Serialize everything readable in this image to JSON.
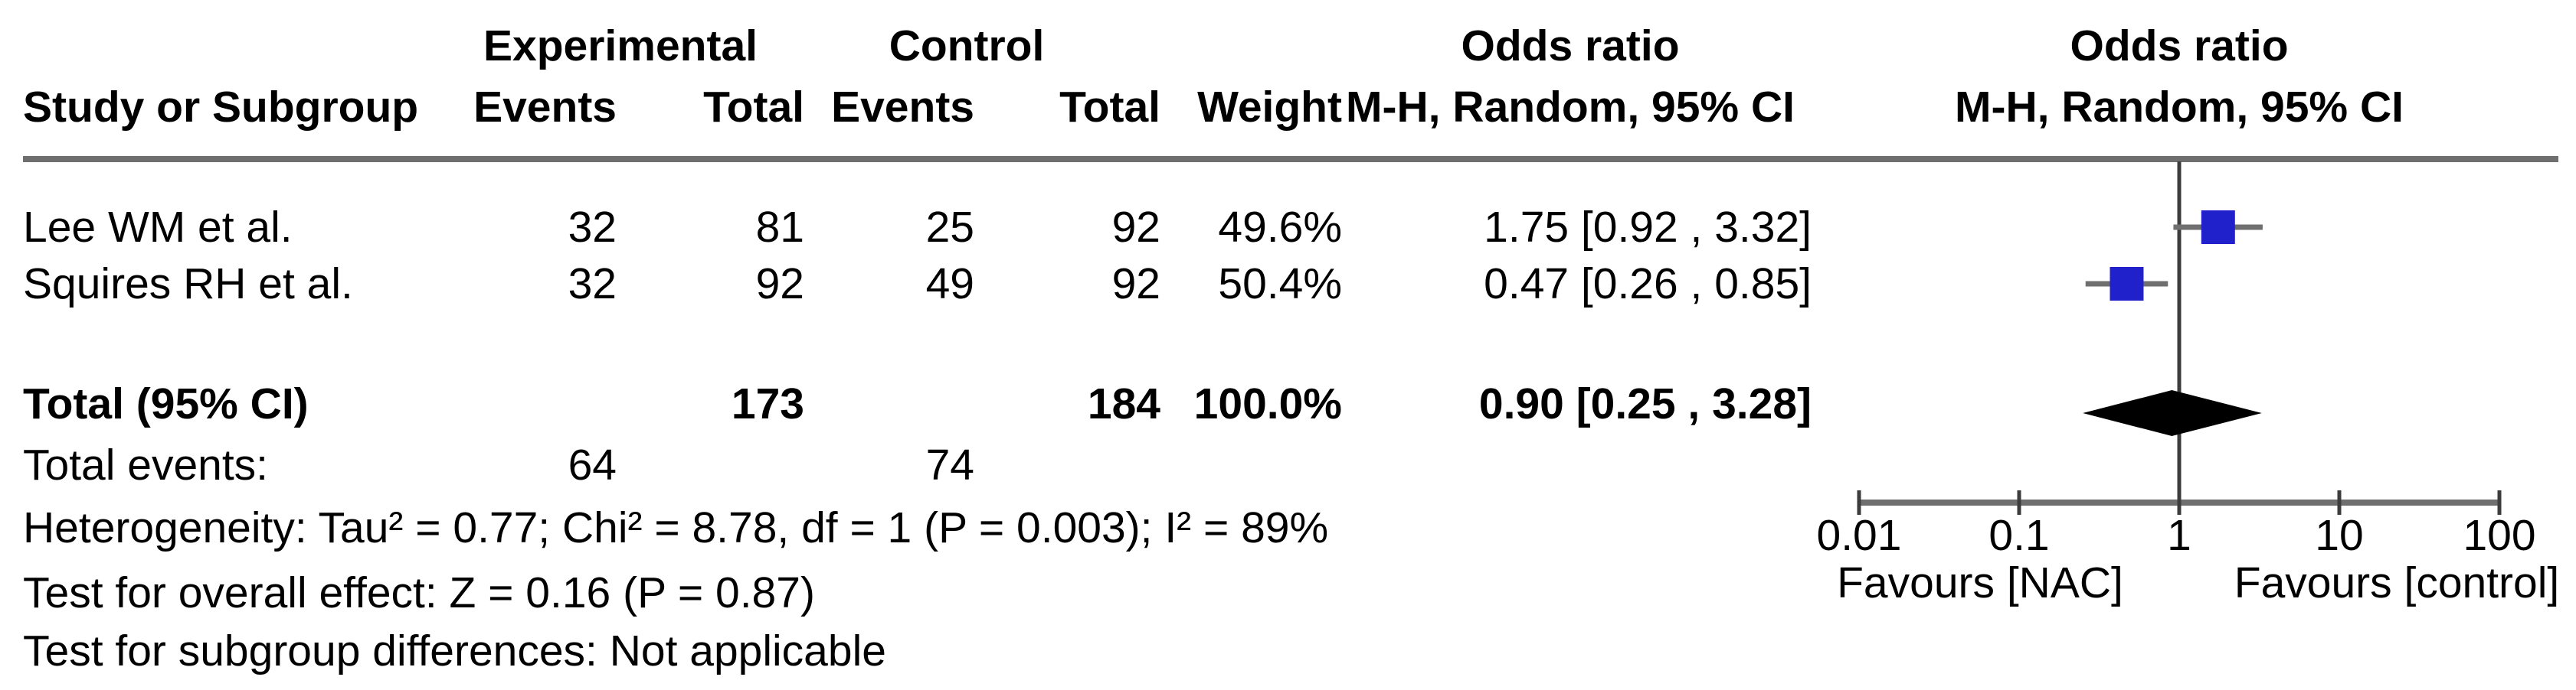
{
  "header": {
    "experimental": "Experimental",
    "control": "Control",
    "odds_ratio_col": "Odds ratio",
    "odds_ratio_plot": "Odds ratio",
    "study": "Study or Subgroup",
    "events": "Events",
    "total": "Total",
    "events_control": "Events",
    "total_control": "Total",
    "weight": "Weight",
    "mh_col": "M-H, Random, 95% CI",
    "mh_plot": "M-H, Random, 95% CI"
  },
  "studies": [
    {
      "name": "Lee WM et al.",
      "exp_events": "32",
      "exp_total": "81",
      "ctl_events": "25",
      "ctl_total": "92",
      "weight": "49.6%",
      "or_ci": "1.75 [0.92 , 3.32]"
    },
    {
      "name": "Squires RH et al.",
      "exp_events": "32",
      "exp_total": "92",
      "ctl_events": "49",
      "ctl_total": "92",
      "weight": "50.4%",
      "or_ci": "0.47 [0.26 , 0.85]"
    }
  ],
  "total": {
    "label": "Total (95% CI)",
    "exp_total": "173",
    "ctl_total": "184",
    "weight": "100.0%",
    "or_ci": "0.90 [0.25 , 3.28]"
  },
  "total_events": {
    "label": "Total events:",
    "exp": "64",
    "ctl": "74"
  },
  "footnotes": {
    "heterogeneity": "Heterogeneity: Tau² = 0.77; Chi² = 8.78, df = 1 (P = 0.003); I² = 89%",
    "overall_effect": "Test for overall effect: Z = 0.16 (P = 0.87)",
    "subgroup": "Test for subgroup differences: Not applicable"
  },
  "axis": {
    "tick_labels": [
      "0.01",
      "0.1",
      "1",
      "10",
      "100"
    ],
    "favours_left": "Favours [NAC]",
    "favours_right": "Favours [control]"
  },
  "chart_data": {
    "type": "scatter",
    "subtype": "forest_plot_odds_ratio",
    "title": "Odds ratio, M-H, Random, 95% CI",
    "x_scale": "log10",
    "x_range": [
      0.01,
      100
    ],
    "x_ticks": [
      0.01,
      0.1,
      1,
      10,
      100
    ],
    "null_line_x": 1,
    "series": [
      {
        "name": "Lee WM et al.",
        "or": 1.75,
        "ci_low": 0.92,
        "ci_high": 3.32,
        "weight_pct": 49.6,
        "marker": "square"
      },
      {
        "name": "Squires RH et al.",
        "or": 0.47,
        "ci_low": 0.26,
        "ci_high": 0.85,
        "weight_pct": 50.4,
        "marker": "square"
      }
    ],
    "summary": {
      "name": "Total (95% CI)",
      "or": 0.9,
      "ci_low": 0.25,
      "ci_high": 3.28,
      "marker": "diamond"
    },
    "xlabel_left": "Favours [NAC]",
    "xlabel_right": "Favours [control]",
    "colors": {
      "marker": "#2121cc",
      "summary_diamond": "#000000",
      "ci_line": "#6f6f6f",
      "axis_line": "#6f6f6f",
      "tick_line": "#3c3c3c",
      "null_line": "#3c3c3c"
    }
  }
}
